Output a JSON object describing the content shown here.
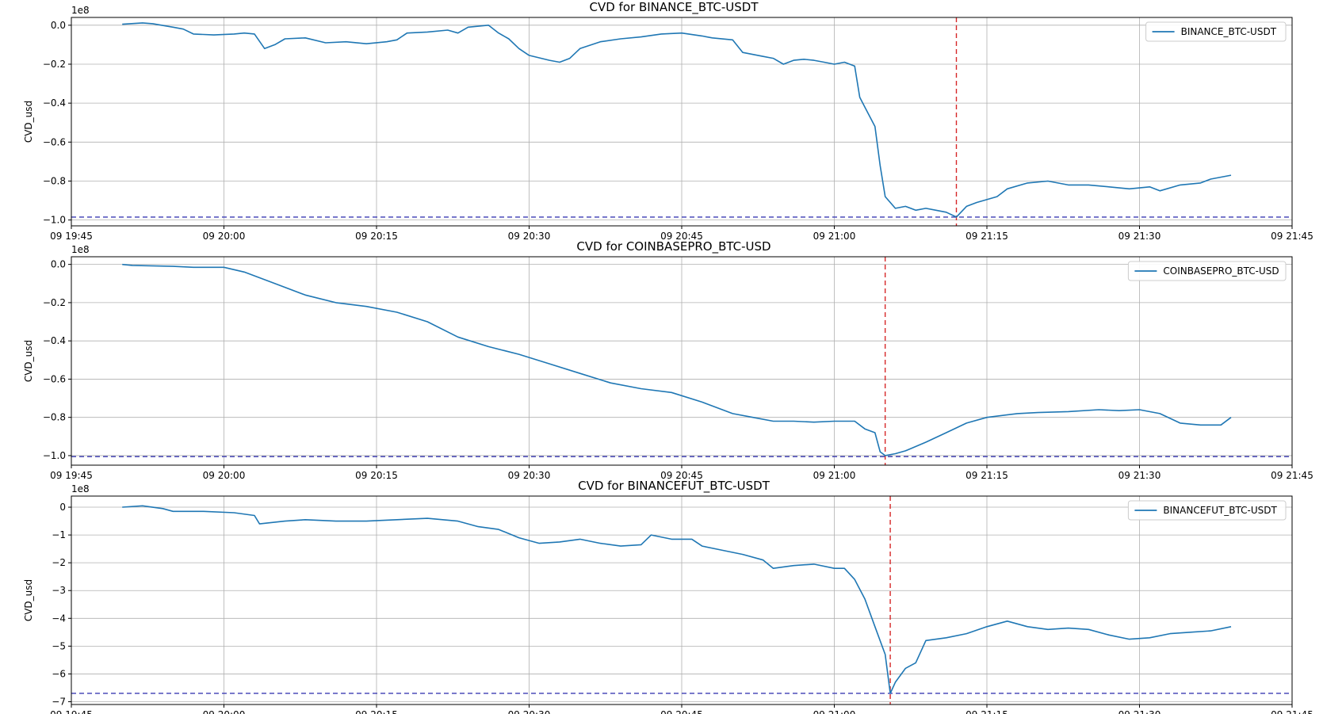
{
  "colors": {
    "series": "#1f77b4",
    "event_line": "#d62728",
    "min_line": "#3b3bb3"
  },
  "x_tick_labels": [
    "09 19:45",
    "09 20:00",
    "09 20:15",
    "09 20:30",
    "09 20:45",
    "09 21:00",
    "09 21:15",
    "09 21:30",
    "09 21:45"
  ],
  "chart_data": [
    {
      "type": "line",
      "title": "CVD for BINANCE_BTC-USDT",
      "ylabel": "CVD_usd",
      "y_offset_label": "1e8",
      "xlim": [
        "19:45",
        "21:45"
      ],
      "ylim": [
        -1.03,
        0.04
      ],
      "yticks": [
        0.0,
        -0.2,
        -0.4,
        -0.6,
        -0.8,
        -1.0
      ],
      "ytick_labels": [
        "0.0",
        "−0.2",
        "−0.4",
        "−0.6",
        "−0.8",
        "−1.0"
      ],
      "legend": "top-right",
      "grid": true,
      "event_time": "21:12",
      "min_level": -0.985,
      "series": [
        {
          "name": "BINANCE_BTC-USDT",
          "points": [
            [
              "19:50",
              0.005
            ],
            [
              "19:52",
              0.012
            ],
            [
              "19:53",
              0.008
            ],
            [
              "19:55",
              -0.01
            ],
            [
              "19:56",
              -0.02
            ],
            [
              "19:57",
              -0.045
            ],
            [
              "19:59",
              -0.05
            ],
            [
              "20:01",
              -0.045
            ],
            [
              "20:02",
              -0.04
            ],
            [
              "20:03",
              -0.045
            ],
            [
              "20:04",
              -0.12
            ],
            [
              "20:05",
              -0.1
            ],
            [
              "20:06",
              -0.07
            ],
            [
              "20:08",
              -0.065
            ],
            [
              "20:10",
              -0.09
            ],
            [
              "20:12",
              -0.085
            ],
            [
              "20:14",
              -0.095
            ],
            [
              "20:16",
              -0.085
            ],
            [
              "20:17",
              -0.075
            ],
            [
              "20:18",
              -0.04
            ],
            [
              "20:20",
              -0.035
            ],
            [
              "20:22",
              -0.025
            ],
            [
              "20:23",
              -0.04
            ],
            [
              "20:24",
              -0.01
            ],
            [
              "20:26",
              0.0
            ],
            [
              "20:27",
              -0.04
            ],
            [
              "20:28",
              -0.07
            ],
            [
              "20:29",
              -0.12
            ],
            [
              "20:30",
              -0.155
            ],
            [
              "20:32",
              -0.18
            ],
            [
              "20:33",
              -0.19
            ],
            [
              "20:34",
              -0.17
            ],
            [
              "20:35",
              -0.12
            ],
            [
              "20:37",
              -0.085
            ],
            [
              "20:39",
              -0.07
            ],
            [
              "20:41",
              -0.06
            ],
            [
              "20:43",
              -0.045
            ],
            [
              "20:45",
              -0.04
            ],
            [
              "20:47",
              -0.055
            ],
            [
              "20:48",
              -0.065
            ],
            [
              "20:50",
              -0.075
            ],
            [
              "20:51",
              -0.14
            ],
            [
              "20:53",
              -0.16
            ],
            [
              "20:54",
              -0.17
            ],
            [
              "20:55",
              -0.2
            ],
            [
              "20:56",
              -0.18
            ],
            [
              "20:57",
              -0.175
            ],
            [
              "20:58",
              -0.18
            ],
            [
              "20:59",
              -0.19
            ],
            [
              "21:00",
              -0.2
            ],
            [
              "21:01",
              -0.19
            ],
            [
              "21:02",
              -0.21
            ],
            [
              "21:02.5",
              -0.37
            ],
            [
              "21:03",
              -0.42
            ],
            [
              "21:04",
              -0.52
            ],
            [
              "21:04.5",
              -0.72
            ],
            [
              "21:05",
              -0.88
            ],
            [
              "21:06",
              -0.94
            ],
            [
              "21:07",
              -0.93
            ],
            [
              "21:08",
              -0.95
            ],
            [
              "21:09",
              -0.94
            ],
            [
              "21:10",
              -0.95
            ],
            [
              "21:11",
              -0.96
            ],
            [
              "21:12",
              -0.985
            ],
            [
              "21:13",
              -0.93
            ],
            [
              "21:14",
              -0.91
            ],
            [
              "21:16",
              -0.88
            ],
            [
              "21:17",
              -0.84
            ],
            [
              "21:19",
              -0.81
            ],
            [
              "21:21",
              -0.8
            ],
            [
              "21:23",
              -0.82
            ],
            [
              "21:25",
              -0.82
            ],
            [
              "21:27",
              -0.83
            ],
            [
              "21:29",
              -0.84
            ],
            [
              "21:31",
              -0.83
            ],
            [
              "21:32",
              -0.85
            ],
            [
              "21:34",
              -0.82
            ],
            [
              "21:36",
              -0.81
            ],
            [
              "21:37",
              -0.79
            ],
            [
              "21:39",
              -0.77
            ]
          ]
        }
      ]
    },
    {
      "type": "line",
      "title": "CVD for COINBASEPRO_BTC-USD",
      "ylabel": "CVD_usd",
      "y_offset_label": "1e8",
      "xlim": [
        "19:45",
        "21:45"
      ],
      "ylim": [
        -1.05,
        0.04
      ],
      "yticks": [
        0.0,
        -0.2,
        -0.4,
        -0.6,
        -0.8,
        -1.0
      ],
      "ytick_labels": [
        "0.0",
        "−0.2",
        "−0.4",
        "−0.6",
        "−0.8",
        "−1.0"
      ],
      "legend": "top-right",
      "grid": true,
      "event_time": "21:05",
      "min_level": -1.005,
      "series": [
        {
          "name": "COINBASEPRO_BTC-USD",
          "points": [
            [
              "19:50",
              0.0
            ],
            [
              "19:51",
              -0.005
            ],
            [
              "19:55",
              -0.01
            ],
            [
              "19:57",
              -0.015
            ],
            [
              "20:00",
              -0.015
            ],
            [
              "20:02",
              -0.04
            ],
            [
              "20:05",
              -0.1
            ],
            [
              "20:08",
              -0.16
            ],
            [
              "20:11",
              -0.2
            ],
            [
              "20:14",
              -0.22
            ],
            [
              "20:17",
              -0.25
            ],
            [
              "20:20",
              -0.3
            ],
            [
              "20:23",
              -0.38
            ],
            [
              "20:26",
              -0.43
            ],
            [
              "20:29",
              -0.47
            ],
            [
              "20:32",
              -0.52
            ],
            [
              "20:35",
              -0.57
            ],
            [
              "20:38",
              -0.62
            ],
            [
              "20:41",
              -0.65
            ],
            [
              "20:44",
              -0.67
            ],
            [
              "20:47",
              -0.72
            ],
            [
              "20:50",
              -0.78
            ],
            [
              "20:52",
              -0.8
            ],
            [
              "20:54",
              -0.82
            ],
            [
              "20:56",
              -0.82
            ],
            [
              "20:58",
              -0.825
            ],
            [
              "21:00",
              -0.82
            ],
            [
              "21:02",
              -0.82
            ],
            [
              "21:03",
              -0.86
            ],
            [
              "21:04",
              -0.88
            ],
            [
              "21:04.5",
              -0.98
            ],
            [
              "21:05",
              -1.0
            ],
            [
              "21:06",
              -0.99
            ],
            [
              "21:07",
              -0.975
            ],
            [
              "21:09",
              -0.93
            ],
            [
              "21:11",
              -0.88
            ],
            [
              "21:13",
              -0.83
            ],
            [
              "21:15",
              -0.8
            ],
            [
              "21:18",
              -0.78
            ],
            [
              "21:20",
              -0.775
            ],
            [
              "21:23",
              -0.77
            ],
            [
              "21:26",
              -0.76
            ],
            [
              "21:28",
              -0.765
            ],
            [
              "21:30",
              -0.76
            ],
            [
              "21:32",
              -0.78
            ],
            [
              "21:34",
              -0.83
            ],
            [
              "21:36",
              -0.84
            ],
            [
              "21:38",
              -0.84
            ],
            [
              "21:39",
              -0.8
            ]
          ]
        }
      ]
    },
    {
      "type": "line",
      "title": "CVD for BINANCEFUT_BTC-USDT",
      "ylabel": "CVD_usd",
      "y_offset_label": "1e8",
      "xlim": [
        "19:45",
        "21:45"
      ],
      "ylim": [
        -7.1,
        0.4
      ],
      "yticks": [
        0,
        -1,
        -2,
        -3,
        -4,
        -5,
        -6,
        -7
      ],
      "ytick_labels": [
        "0",
        "−1",
        "−2",
        "−3",
        "−4",
        "−5",
        "−6",
        "−7"
      ],
      "legend": "top-right",
      "grid": true,
      "event_time": "21:05.5",
      "min_level": -6.7,
      "series": [
        {
          "name": "BINANCEFUT_BTC-USDT",
          "points": [
            [
              "19:50",
              0.0
            ],
            [
              "19:52",
              0.05
            ],
            [
              "19:54",
              -0.05
            ],
            [
              "19:55",
              -0.15
            ],
            [
              "19:58",
              -0.15
            ],
            [
              "20:01",
              -0.2
            ],
            [
              "20:03",
              -0.3
            ],
            [
              "20:03.5",
              -0.6
            ],
            [
              "20:06",
              -0.5
            ],
            [
              "20:08",
              -0.45
            ],
            [
              "20:11",
              -0.5
            ],
            [
              "20:14",
              -0.5
            ],
            [
              "20:17",
              -0.45
            ],
            [
              "20:20",
              -0.4
            ],
            [
              "20:23",
              -0.5
            ],
            [
              "20:25",
              -0.7
            ],
            [
              "20:27",
              -0.8
            ],
            [
              "20:29",
              -1.1
            ],
            [
              "20:31",
              -1.3
            ],
            [
              "20:33",
              -1.25
            ],
            [
              "20:35",
              -1.15
            ],
            [
              "20:37",
              -1.3
            ],
            [
              "20:39",
              -1.4
            ],
            [
              "20:41",
              -1.35
            ],
            [
              "20:42",
              -1.0
            ],
            [
              "20:44",
              -1.15
            ],
            [
              "20:46",
              -1.15
            ],
            [
              "20:47",
              -1.4
            ],
            [
              "20:49",
              -1.55
            ],
            [
              "20:51",
              -1.7
            ],
            [
              "20:53",
              -1.9
            ],
            [
              "20:54",
              -2.2
            ],
            [
              "20:56",
              -2.1
            ],
            [
              "20:58",
              -2.05
            ],
            [
              "21:00",
              -2.2
            ],
            [
              "21:01",
              -2.2
            ],
            [
              "21:02",
              -2.6
            ],
            [
              "21:03",
              -3.3
            ],
            [
              "21:04",
              -4.3
            ],
            [
              "21:05",
              -5.3
            ],
            [
              "21:05.5",
              -6.7
            ],
            [
              "21:06",
              -6.3
            ],
            [
              "21:07",
              -5.8
            ],
            [
              "21:08",
              -5.6
            ],
            [
              "21:09",
              -4.8
            ],
            [
              "21:11",
              -4.7
            ],
            [
              "21:13",
              -4.55
            ],
            [
              "21:15",
              -4.3
            ],
            [
              "21:17",
              -4.1
            ],
            [
              "21:19",
              -4.3
            ],
            [
              "21:21",
              -4.4
            ],
            [
              "21:23",
              -4.35
            ],
            [
              "21:25",
              -4.4
            ],
            [
              "21:27",
              -4.6
            ],
            [
              "21:29",
              -4.75
            ],
            [
              "21:31",
              -4.7
            ],
            [
              "21:33",
              -4.55
            ],
            [
              "21:35",
              -4.5
            ],
            [
              "21:37",
              -4.45
            ],
            [
              "21:39",
              -4.3
            ]
          ]
        }
      ]
    }
  ]
}
